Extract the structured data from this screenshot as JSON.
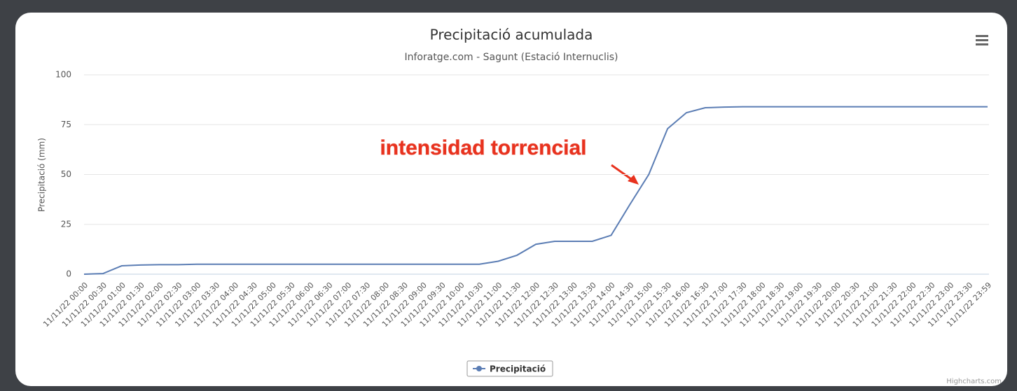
{
  "chart_data": {
    "type": "line",
    "title": "Precipitació acumulada",
    "subtitle": "Inforatge.com - Sagunt (Estació Internuclis)",
    "y_label": "Precipitació (mm)",
    "annotation": "intensidad torrencial",
    "credit": "Highcharts.com",
    "categories": [
      "11/11/22 00:00",
      "11/11/22 00:30",
      "11/11/22 01:00",
      "11/11/22 01:30",
      "11/11/22 02:00",
      "11/11/22 02:30",
      "11/11/22 03:00",
      "11/11/22 03:30",
      "11/11/22 04:00",
      "11/11/22 04:30",
      "11/11/22 05:00",
      "11/11/22 05:30",
      "11/11/22 06:00",
      "11/11/22 06:30",
      "11/11/22 07:00",
      "11/11/22 07:30",
      "11/11/22 08:00",
      "11/11/22 08:30",
      "11/11/22 09:00",
      "11/11/22 09:30",
      "11/11/22 10:00",
      "11/11/22 10:30",
      "11/11/22 11:00",
      "11/11/22 11:30",
      "11/11/22 12:00",
      "11/11/22 12:30",
      "11/11/22 13:00",
      "11/11/22 13:30",
      "11/11/22 14:00",
      "11/11/22 14:30",
      "11/11/22 15:00",
      "11/11/22 15:30",
      "11/11/22 16:00",
      "11/11/22 16:30",
      "11/11/22 17:00",
      "11/11/22 17:30",
      "11/11/22 18:00",
      "11/11/22 18:30",
      "11/11/22 19:00",
      "11/11/22 19:30",
      "11/11/22 20:00",
      "11/11/22 20:30",
      "11/11/22 21:00",
      "11/11/22 21:30",
      "11/11/22 22:00",
      "11/11/22 22:30",
      "11/11/22 23:00",
      "11/11/22 23:30",
      "11/11/22 23:59"
    ],
    "series": [
      {
        "name": "Precipitació",
        "color": "#5b7db4",
        "values": [
          0,
          0.3,
          4.2,
          4.6,
          4.8,
          4.8,
          5,
          5,
          5,
          5,
          5,
          5,
          5,
          5,
          5,
          5,
          5,
          5,
          5,
          5,
          5,
          5,
          6.5,
          9.5,
          15,
          16.5,
          16.5,
          16.5,
          19.5,
          35,
          50,
          73,
          81,
          83.5,
          83.8,
          84,
          84,
          84,
          84,
          84,
          84,
          84,
          84,
          84,
          84,
          84,
          84,
          84,
          84
        ]
      }
    ],
    "ylim": [
      0,
      100
    ],
    "yticks": [
      0,
      25,
      50,
      75,
      100
    ],
    "grid": true
  }
}
